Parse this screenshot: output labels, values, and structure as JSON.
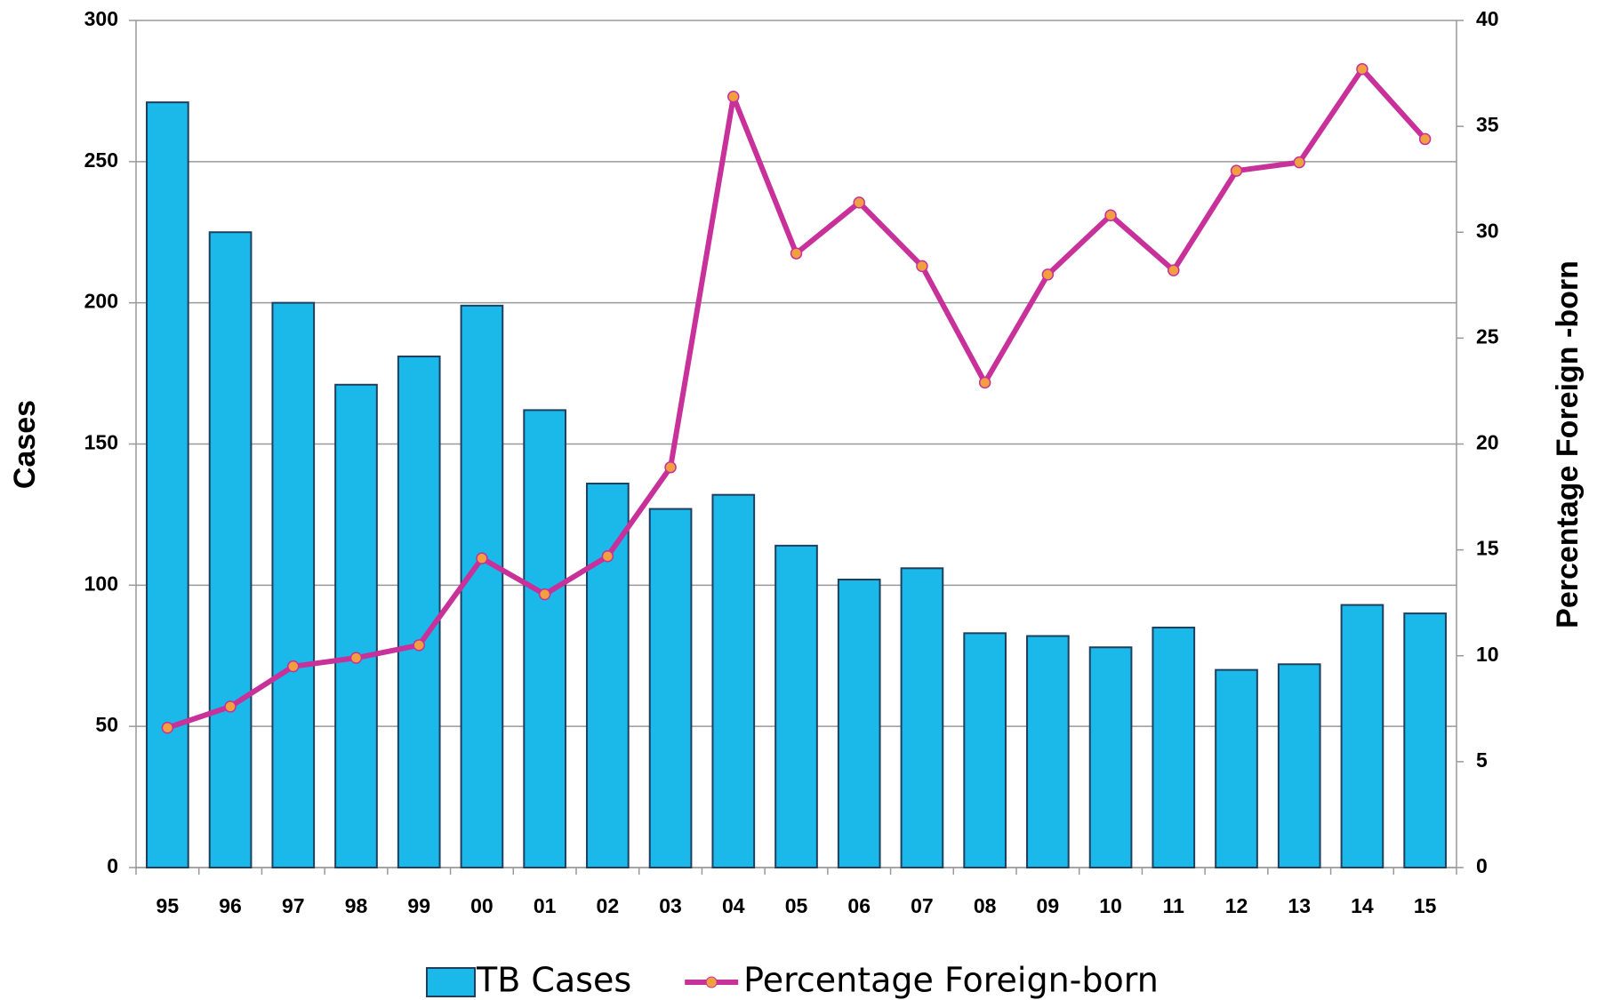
{
  "chart_data": {
    "type": "bar-line",
    "ylabel": "Cases",
    "y2label": "Percentage Foreign -born",
    "categories": [
      "95",
      "96",
      "97",
      "98",
      "99",
      "00",
      "01",
      "02",
      "03",
      "04",
      "05",
      "06",
      "07",
      "08",
      "09",
      "10",
      "11",
      "12",
      "13",
      "14",
      "15"
    ],
    "series": [
      {
        "name": "TB Cases",
        "type": "bar",
        "color": "#1bb8ea",
        "axis": "y",
        "values": [
          271,
          225,
          200,
          171,
          181,
          199,
          162,
          136,
          127,
          132,
          114,
          102,
          106,
          83,
          82,
          78,
          85,
          70,
          72,
          93,
          90
        ]
      },
      {
        "name": "Percentage Foreign-born",
        "type": "line",
        "color": "#c8309a",
        "marker_color": "#f0a040",
        "axis": "y2",
        "values": [
          6.6,
          7.6,
          9.5,
          9.9,
          10.5,
          14.6,
          12.9,
          14.7,
          18.9,
          36.4,
          29.0,
          31.4,
          28.4,
          22.9,
          28.0,
          30.8,
          28.2,
          32.9,
          33.3,
          37.7,
          34.4
        ]
      }
    ],
    "ylim": [
      0,
      300
    ],
    "yticks": [
      0,
      50,
      100,
      150,
      200,
      250,
      300
    ],
    "y2lim": [
      0,
      40
    ],
    "y2ticks": [
      0,
      5,
      10,
      15,
      20,
      25,
      30,
      35,
      40
    ],
    "grid": true,
    "legend": "bottom"
  }
}
